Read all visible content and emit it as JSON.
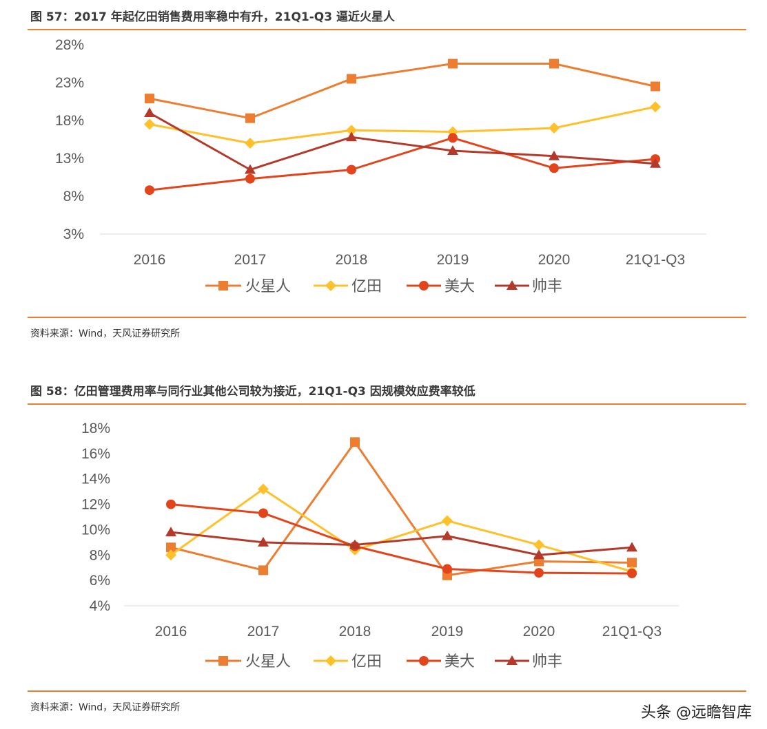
{
  "figures": [
    {
      "title": "图 57：2017 年起亿田销售费用率稳中有升，21Q1-Q3 逼近火星人",
      "source": "资料来源：Wind，天风证券研究所"
    },
    {
      "title": "图 58：亿田管理费用率与同行业其他公司较为接近，21Q1-Q3 因规模效应费率较低",
      "source": "资料来源：Wind，天风证券研究所"
    }
  ],
  "watermark": "头条 @远瞻智库",
  "chart_data": [
    {
      "type": "line",
      "categories": [
        "2016",
        "2017",
        "2018",
        "2019",
        "2020",
        "21Q1-Q3"
      ],
      "ylim": [
        3,
        28
      ],
      "yticks": [
        "3%",
        "8%",
        "13%",
        "18%",
        "23%",
        "28%"
      ],
      "ytick_values": [
        3,
        8,
        13,
        18,
        23,
        28
      ],
      "grid": false,
      "legend": "bottom",
      "series": [
        {
          "name": "火星人",
          "color": "#ED7D31",
          "marker": "square",
          "values": [
            20.9,
            18.3,
            23.5,
            25.5,
            25.5,
            22.5
          ]
        },
        {
          "name": "亿田",
          "color": "#FFC02A",
          "marker": "diamond",
          "values": [
            17.5,
            15.0,
            16.7,
            16.5,
            17.0,
            19.8
          ]
        },
        {
          "name": "美大",
          "color": "#E2441C",
          "marker": "circle",
          "values": [
            8.8,
            10.3,
            11.5,
            15.7,
            11.7,
            12.9
          ]
        },
        {
          "name": "帅丰",
          "color": "#B33A2A",
          "marker": "triangle",
          "values": [
            19.0,
            11.5,
            15.8,
            14.0,
            13.3,
            12.3
          ]
        }
      ]
    },
    {
      "type": "line",
      "categories": [
        "2016",
        "2017",
        "2018",
        "2019",
        "2020",
        "21Q1-Q3"
      ],
      "ylim": [
        4,
        18
      ],
      "yticks": [
        "4%",
        "6%",
        "8%",
        "10%",
        "12%",
        "14%",
        "16%",
        "18%"
      ],
      "ytick_values": [
        4,
        6,
        8,
        10,
        12,
        14,
        16,
        18
      ],
      "grid": false,
      "legend": "bottom",
      "series": [
        {
          "name": "火星人",
          "color": "#ED7D31",
          "marker": "square",
          "values": [
            8.6,
            6.8,
            16.9,
            6.4,
            7.5,
            7.4
          ]
        },
        {
          "name": "亿田",
          "color": "#FFC02A",
          "marker": "diamond",
          "values": [
            8.0,
            13.2,
            8.4,
            10.7,
            8.8,
            6.7
          ]
        },
        {
          "name": "美大",
          "color": "#E2441C",
          "marker": "circle",
          "values": [
            12.0,
            11.3,
            8.7,
            6.9,
            6.6,
            6.55
          ]
        },
        {
          "name": "帅丰",
          "color": "#B33A2A",
          "marker": "triangle",
          "values": [
            9.8,
            9.0,
            8.8,
            9.5,
            8.0,
            8.6
          ]
        }
      ]
    }
  ]
}
